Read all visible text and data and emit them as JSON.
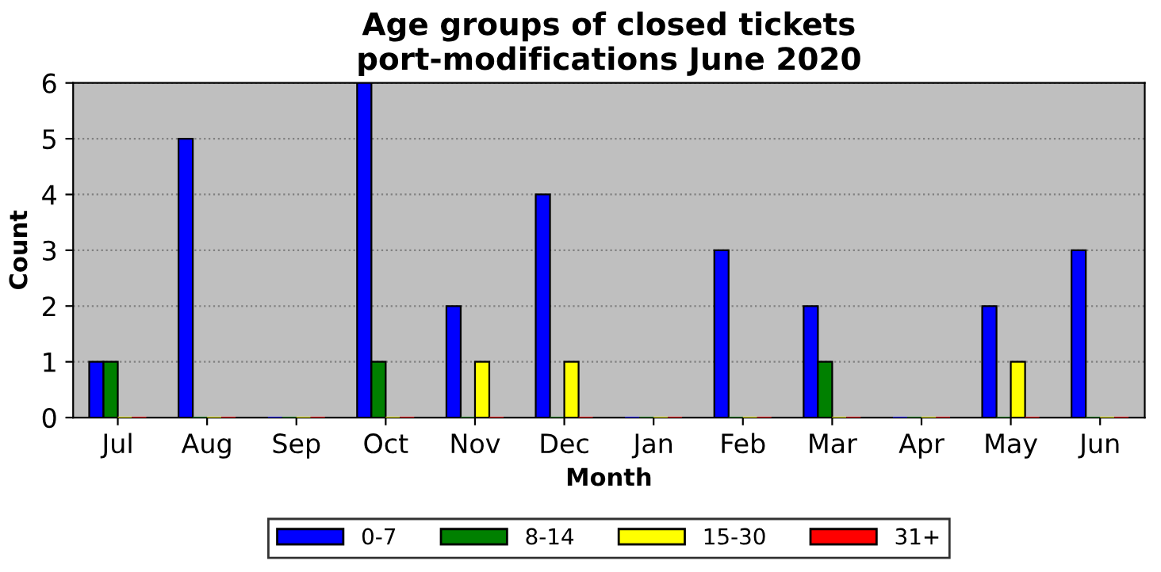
{
  "chart_data": {
    "type": "bar",
    "title": "Age groups of closed tickets\nport-modifications June 2020",
    "xlabel": "Month",
    "ylabel": "Count",
    "categories": [
      "Jul",
      "Aug",
      "Sep",
      "Oct",
      "Nov",
      "Dec",
      "Jan",
      "Feb",
      "Mar",
      "Apr",
      "May",
      "Jun"
    ],
    "series": [
      {
        "name": "0-7",
        "color": "#0000ff",
        "values": [
          1,
          5,
          0,
          6,
          2,
          4,
          0,
          3,
          2,
          0,
          2,
          3
        ]
      },
      {
        "name": "8-14",
        "color": "#008000",
        "values": [
          1,
          0,
          0,
          1,
          0,
          0,
          0,
          0,
          1,
          0,
          0,
          0
        ]
      },
      {
        "name": "15-30",
        "color": "#ffff00",
        "values": [
          0,
          0,
          0,
          0,
          1,
          1,
          0,
          0,
          0,
          0,
          1,
          0
        ]
      },
      {
        "name": "31+",
        "color": "#ff0000",
        "values": [
          0,
          0,
          0,
          0,
          0,
          0,
          0,
          0,
          0,
          0,
          0,
          0
        ]
      }
    ],
    "ylim": [
      0,
      6
    ],
    "yticks": [
      0,
      1,
      2,
      3,
      4,
      5,
      6
    ],
    "grid": "y",
    "legend": "bottom"
  }
}
